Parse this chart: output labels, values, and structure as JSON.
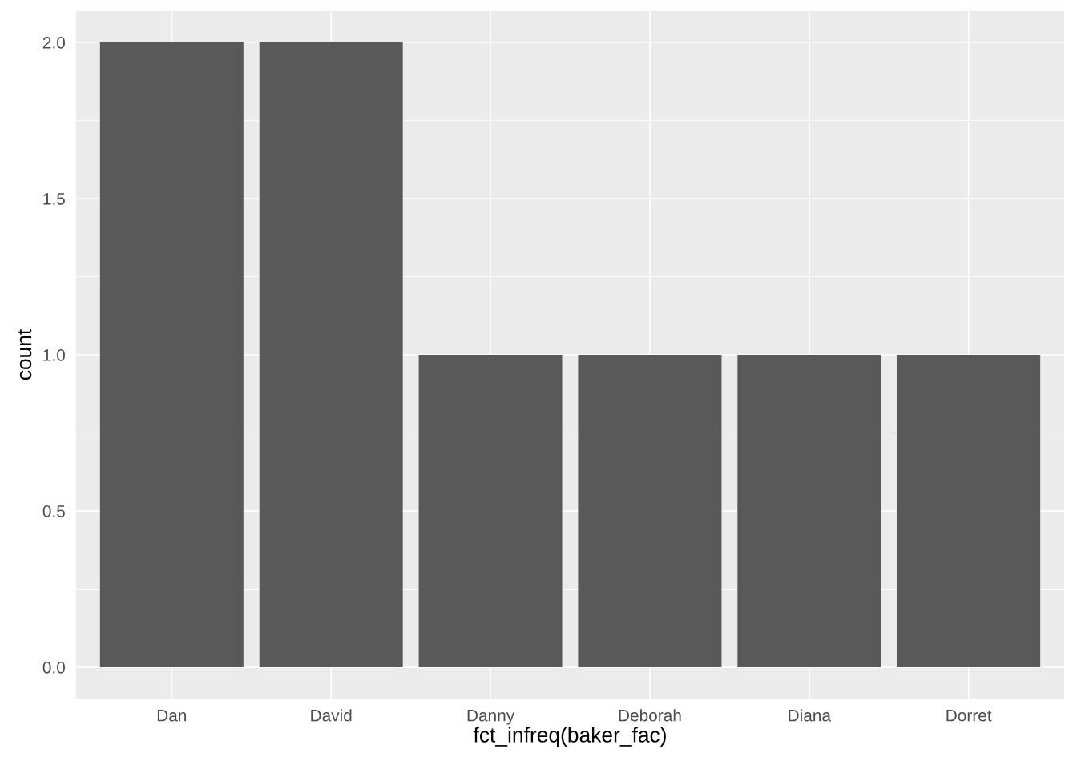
{
  "chart_data": {
    "type": "bar",
    "xlabel": "fct_infreq(baker_fac)",
    "ylabel": "count",
    "categories": [
      "Dan",
      "David",
      "Danny",
      "Deborah",
      "Diana",
      "Dorret"
    ],
    "values": [
      2,
      2,
      1,
      1,
      1,
      1
    ],
    "color": "#595959",
    "ylim": [
      -0.1,
      2.1
    ],
    "yticks": [
      {
        "value": 0,
        "label": "0.0"
      },
      {
        "value": 0.5,
        "label": "0.5"
      },
      {
        "value": 1,
        "label": "1.0"
      },
      {
        "value": 1.5,
        "label": "1.5"
      },
      {
        "value": 2,
        "label": "2.0"
      }
    ],
    "grid": true
  }
}
